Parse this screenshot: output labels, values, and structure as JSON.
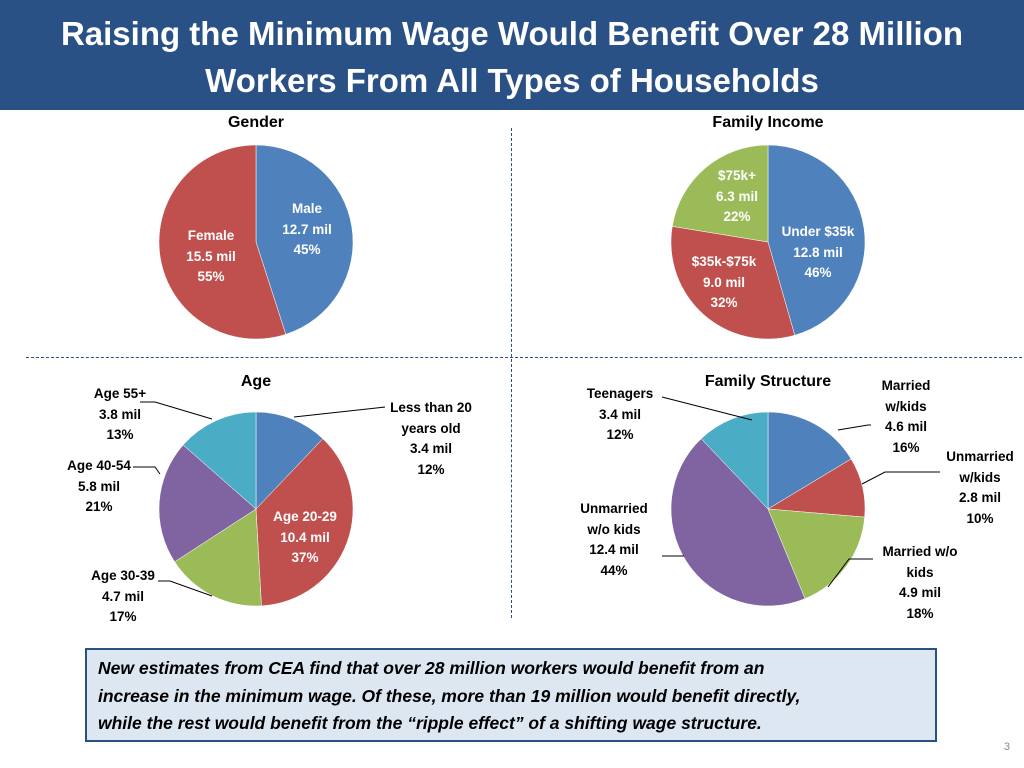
{
  "slide": {
    "title_line1": "Raising the Minimum Wage Would Benefit Over 28 Million",
    "title_line2": "Workers From All Types of Households",
    "note_line1": "New estimates from CEA find that over 28 million workers would benefit from an",
    "note_line2": "increase in the minimum wage. Of these, more than 19 million would benefit directly,",
    "note_line3": "while the rest would benefit from the “ripple effect” of a shifting wage structure.",
    "page_number": "3"
  },
  "chart_data": [
    {
      "type": "pie",
      "title": "Gender",
      "colors": [
        "#4f81bd",
        "#c0504d"
      ],
      "slices": [
        {
          "label": "Male",
          "value_text": "12.7 mil",
          "pct_text": "45%",
          "value": 12.7
        },
        {
          "label": "Female",
          "value_text": "15.5 mil",
          "pct_text": "55%",
          "value": 15.5
        }
      ]
    },
    {
      "type": "pie",
      "title": "Family Income",
      "colors": [
        "#4f81bd",
        "#c0504d",
        "#9bbb59"
      ],
      "slices": [
        {
          "label": "Under $35k",
          "value_text": "12.8 mil",
          "pct_text": "46%",
          "value": 12.8
        },
        {
          "label": "$35k-$75k",
          "value_text": "9.0 mil",
          "pct_text": "32%",
          "value": 9.0
        },
        {
          "label": "$75k+",
          "value_text": "6.3 mil",
          "pct_text": "22%",
          "value": 6.3
        }
      ]
    },
    {
      "type": "pie",
      "title": "Age",
      "colors": [
        "#4f81bd",
        "#c0504d",
        "#9bbb59",
        "#8064a2",
        "#4bacc6"
      ],
      "slices": [
        {
          "label_lines": [
            "Less than 20",
            "years old"
          ],
          "value_text": "3.4 mil",
          "pct_text": "12%",
          "value": 3.4
        },
        {
          "label": "Age 20-29",
          "value_text": "10.4 mil",
          "pct_text": "37%",
          "value": 10.4
        },
        {
          "label": "Age 30-39",
          "value_text": "4.7 mil",
          "pct_text": "17%",
          "value": 4.7
        },
        {
          "label": "Age 40-54",
          "value_text": "5.8 mil",
          "pct_text": "21%",
          "value": 5.8
        },
        {
          "label": "Age 55+",
          "value_text": "3.8 mil",
          "pct_text": "13%",
          "value": 3.8
        }
      ]
    },
    {
      "type": "pie",
      "title": "Family Structure",
      "colors": [
        "#4f81bd",
        "#c0504d",
        "#9bbb59",
        "#8064a2",
        "#4bacc6"
      ],
      "slices": [
        {
          "label_lines": [
            "Married",
            "w/kids"
          ],
          "value_text": "4.6 mil",
          "pct_text": "16%",
          "value": 4.6
        },
        {
          "label_lines": [
            "Unmarried",
            "w/kids"
          ],
          "value_text": "2.8 mil",
          "pct_text": "10%",
          "value": 2.8
        },
        {
          "label_lines": [
            "Married w/o",
            "kids"
          ],
          "value_text": "4.9 mil",
          "pct_text": "18%",
          "value": 4.9
        },
        {
          "label_lines": [
            "Unmarried",
            "w/o kids"
          ],
          "value_text": "12.4 mil",
          "pct_text": "44%",
          "value": 12.4
        },
        {
          "label": "Teenagers",
          "value_text": "3.4 mil",
          "pct_text": "12%",
          "value": 3.4
        }
      ]
    }
  ]
}
